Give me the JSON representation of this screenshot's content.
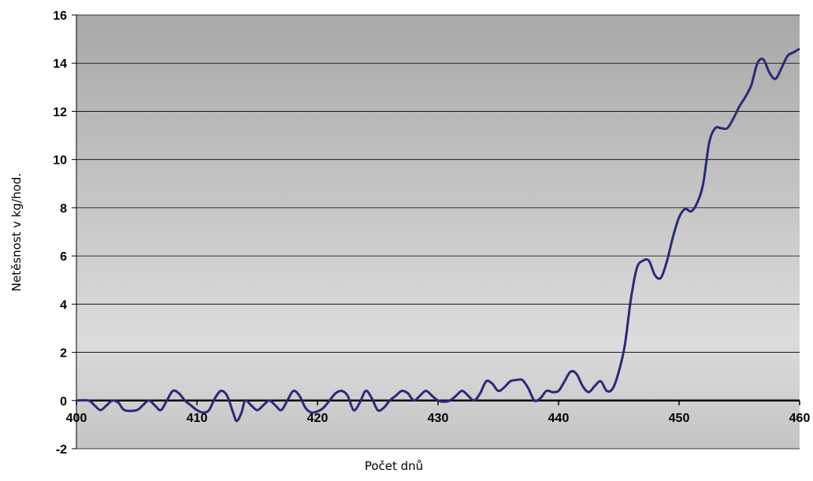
{
  "chart_data": {
    "type": "line",
    "y_label": "Netěsnost v kg/hod.",
    "x_label": "Počet dnů",
    "xlim": [
      400,
      460
    ],
    "xticks": [
      400,
      410,
      420,
      430,
      440,
      450,
      460
    ],
    "ylim": [
      -2,
      16
    ],
    "yticks": [
      -2,
      0,
      2,
      4,
      6,
      8,
      10,
      12,
      14,
      16
    ],
    "grid": true,
    "series": [
      {
        "color": "#2a2a78",
        "x": [
          400,
          401,
          401.5,
          402,
          402.5,
          403,
          403.5,
          404,
          405,
          405.5,
          406,
          406.5,
          407,
          407.5,
          408,
          408.5,
          409,
          409.5,
          410,
          410.5,
          411,
          411.5,
          412,
          412.5,
          413,
          413.3,
          413.7,
          414,
          414.5,
          415,
          415.5,
          416,
          416.5,
          417,
          417.5,
          418,
          418.5,
          419,
          419.5,
          420,
          420.5,
          421,
          421.5,
          422,
          422.5,
          423,
          423.5,
          424,
          424.5,
          425,
          425.5,
          426,
          426.5,
          427,
          427.5,
          428,
          428.5,
          429,
          429.5,
          430,
          430.5,
          431,
          431.5,
          432,
          432.5,
          433,
          433.5,
          434,
          434.5,
          435,
          435.5,
          436,
          436.5,
          437,
          437.5,
          438,
          438.5,
          439,
          439.5,
          440,
          440.5,
          441,
          441.5,
          442,
          442.5,
          443,
          443.5,
          444,
          444.5,
          445,
          445.5,
          446,
          446.5,
          447,
          447.5,
          448,
          448.5,
          449,
          449.5,
          450,
          450.5,
          451,
          451.5,
          452,
          452.5,
          453,
          453.5,
          454,
          454.5,
          455,
          455.5,
          456,
          456.5,
          457,
          457.5,
          458,
          458.5,
          459,
          459.5,
          460
        ],
        "values": [
          0,
          0,
          -0.2,
          -0.4,
          -0.2,
          0,
          -0.1,
          -0.4,
          -0.4,
          -0.2,
          0,
          -0.2,
          -0.4,
          0,
          0.4,
          0.3,
          0,
          -0.2,
          -0.4,
          -0.5,
          -0.4,
          0.1,
          0.4,
          0.2,
          -0.5,
          -0.85,
          -0.5,
          0,
          -0.2,
          -0.4,
          -0.2,
          0,
          -0.2,
          -0.4,
          0,
          0.4,
          0.2,
          -0.3,
          -0.5,
          -0.45,
          -0.3,
          0,
          0.3,
          0.4,
          0.2,
          -0.4,
          -0.1,
          0.4,
          0.1,
          -0.4,
          -0.3,
          0,
          0.2,
          0.4,
          0.3,
          0,
          0.2,
          0.4,
          0.2,
          0,
          -0.05,
          0,
          0.2,
          0.4,
          0.2,
          0,
          0.3,
          0.8,
          0.7,
          0.4,
          0.55,
          0.8,
          0.85,
          0.85,
          0.5,
          0,
          0.1,
          0.4,
          0.35,
          0.4,
          0.8,
          1.2,
          1.1,
          0.6,
          0.35,
          0.6,
          0.8,
          0.4,
          0.5,
          1.2,
          2.3,
          4.2,
          5.5,
          5.8,
          5.8,
          5.2,
          5.1,
          5.8,
          6.8,
          7.6,
          7.95,
          7.85,
          8.2,
          9.0,
          10.7,
          11.3,
          11.3,
          11.3,
          11.7,
          12.2,
          12.6,
          13.1,
          14.0,
          14.15,
          13.6,
          13.35,
          13.8,
          14.3,
          14.45,
          14.6
        ]
      }
    ]
  }
}
